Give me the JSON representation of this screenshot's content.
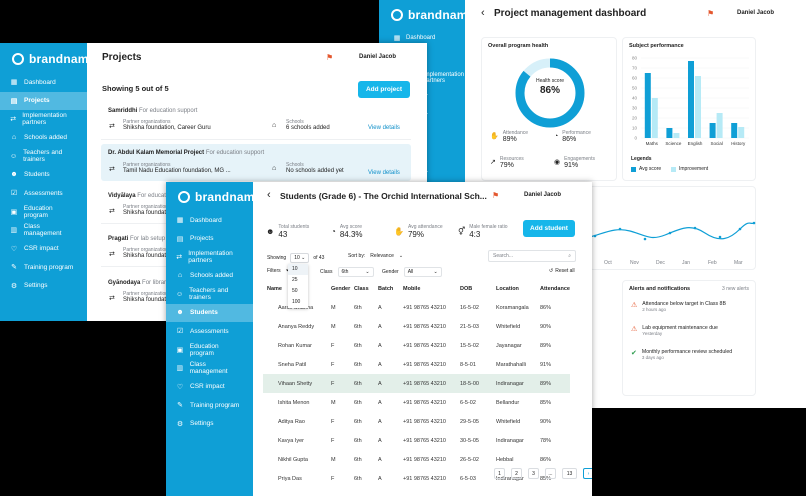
{
  "colors": {
    "primary": "#0f9fd6",
    "accent": "#16b6ea",
    "bar_dark": "#0f9fd6",
    "bar_light": "#b6eaf6"
  },
  "win3": {
    "brand": "brandname",
    "nav": [
      "Dashboard",
      "Projects",
      "Implementation partners",
      "Schools added",
      "Teachers and trainers",
      "Students",
      "Assessments",
      "Education program",
      "Class management",
      "CSR impact",
      "Training program",
      "Settings"
    ],
    "nav_partial": [
      "Dashboard",
      "Implementation partners",
      "Schools added",
      "Teachers and trainers",
      "Students",
      "Assessments",
      "Education program",
      "Class management",
      "CSR impact",
      "Training program",
      "Settings"
    ],
    "title": "Project management dashboard",
    "user": "Daniel Jacob",
    "health": {
      "title": "Overall program health",
      "center_label": "Health score",
      "score": "86%",
      "score_value": 86,
      "metrics": [
        {
          "label": "Attendance",
          "value": "89%",
          "icon": "hand-icon"
        },
        {
          "label": "Performance",
          "value": "86%",
          "icon": "gauge-icon"
        },
        {
          "label": "Resources",
          "value": "79%",
          "icon": "chart-icon"
        },
        {
          "label": "Engagements",
          "value": "91%",
          "icon": "eye-icon"
        }
      ]
    },
    "subject": {
      "title": "Subject performance",
      "yticks": [
        "80",
        "70",
        "60",
        "50",
        "40",
        "30",
        "20",
        "10",
        "0"
      ],
      "legend_title": "Legends",
      "legend": [
        "Avg score",
        "Improvement"
      ]
    },
    "months": [
      "Oct",
      "Nov",
      "Dec",
      "Jan",
      "Feb",
      "Mar"
    ],
    "alerts": {
      "title": "Alerts and notifications",
      "count": "3 new alerts",
      "items": [
        {
          "title": "Attendance below target in Class 8B",
          "time": "2 hours ago",
          "icon": "warning-icon"
        },
        {
          "title": "Lab equipment maintenance due",
          "time": "Yesterday",
          "icon": "warning-icon"
        },
        {
          "title": "Monthly performance review scheduled",
          "time": "3 days ago",
          "icon": "check-icon"
        }
      ]
    }
  },
  "chart_data": {
    "type": "bar",
    "title": "Subject performance",
    "categories": [
      "Maths",
      "Science",
      "English",
      "Social",
      "History"
    ],
    "ylim": [
      0,
      80
    ],
    "series": [
      {
        "name": "Avg score",
        "values": [
          65,
          10,
          77,
          15,
          15
        ]
      },
      {
        "name": "Improvement",
        "values": [
          40,
          5,
          62,
          25,
          11
        ]
      }
    ]
  },
  "win1": {
    "brand": "brandname",
    "nav": [
      "Dashboard",
      "Projects",
      "Implementation partners",
      "Schools added",
      "Teachers and trainers",
      "Students",
      "Assessments",
      "Education program",
      "Class management",
      "CSR impact",
      "Training program",
      "Settings"
    ],
    "title": "Projects",
    "user": "Daniel Jacob",
    "showing": "Showing 5 out of 5",
    "add_button": "Add project",
    "projects": [
      {
        "name": "Samriddhi",
        "purpose": "For education support",
        "partner_label": "Partner organizations",
        "partner": "Shiksha foundation, Career Guru",
        "schools_label": "Schools",
        "schools": "6 schools added",
        "link": "View details"
      },
      {
        "name": "Dr. Abdul Kalam Memorial Project",
        "purpose": "For education support",
        "partner_label": "Partner organizations",
        "partner": "Tamil Nadu Education foundation, MG ...",
        "schools_label": "Schools",
        "schools": "No schools added yet",
        "link": "View details"
      },
      {
        "name": "Vidyālaya",
        "purpose": "For education support",
        "partner_label": "Partner organizations",
        "partner": "Shiksha foundation",
        "schools_label": "",
        "schools": "",
        "link": ""
      },
      {
        "name": "Pragati",
        "purpose": "For lab setup",
        "partner_label": "Partner organizations",
        "partner": "Shiksha foundation",
        "schools_label": "",
        "schools": "",
        "link": ""
      },
      {
        "name": "Gyānodaya",
        "purpose": "For library",
        "partner_label": "Partner organizations",
        "partner": "Shiksha foundation",
        "schools_label": "",
        "schools": "",
        "link": ""
      }
    ]
  },
  "win2": {
    "brand": "brandname",
    "nav": [
      "Dashboard",
      "Projects",
      "Implementation partners",
      "Schools added",
      "Teachers and trainers",
      "Students",
      "Assessments",
      "Education program",
      "Class management",
      "CSR impact",
      "Training program",
      "Settings"
    ],
    "title": "Students (Grade 6) - The Orchid International Sch...",
    "user": "Daniel Jacob",
    "stats": [
      {
        "label": "Total students",
        "value": "43"
      },
      {
        "label": "Avg score",
        "value": "84.3%"
      },
      {
        "label": "Avg attendance",
        "value": "79%"
      },
      {
        "label": "Male female ratio",
        "value": "4:3"
      }
    ],
    "add_button": "Add student",
    "showing_label": "Showing",
    "showing_value": "10",
    "showing_suffix": "of 43",
    "showing_options": [
      "10",
      "25",
      "50",
      "100"
    ],
    "sort_label": "Sort by:",
    "sort_value": "Relevance",
    "search_placeholder": "Search...",
    "filters_label": "Filters",
    "class_label": "Class",
    "class_value": "6th",
    "gender_label": "Gender",
    "gender_value": "All",
    "reset": "Reset all",
    "columns": [
      "Name",
      "Gender",
      "Class",
      "Batch",
      "Mobile",
      "DOB",
      "Location",
      "Attendance"
    ],
    "rows": [
      [
        "Aarav Sharma",
        "M",
        "6th",
        "A",
        "+91 98765 43210",
        "16-5-02",
        "Koramangala",
        "86%"
      ],
      [
        "Ananya Reddy",
        "M",
        "6th",
        "A",
        "+91 98765 43210",
        "21-5-03",
        "Whitefield",
        "90%"
      ],
      [
        "Rohan Kumar",
        "F",
        "6th",
        "A",
        "+91 98765 43210",
        "15-5-02",
        "Jayanagar",
        "89%"
      ],
      [
        "Sneha Patil",
        "F",
        "6th",
        "A",
        "+91 98765 43210",
        "8-5-01",
        "Marathahalli",
        "91%"
      ],
      [
        "Vihaan Shetty",
        "F",
        "6th",
        "A",
        "+91 98765 43210",
        "18-5-00",
        "Indiranagar",
        "89%"
      ],
      [
        "Ishita Menon",
        "M",
        "6th",
        "A",
        "+91 98765 43210",
        "6-5-02",
        "Bellandur",
        "85%"
      ],
      [
        "Aditya Rao",
        "F",
        "6th",
        "A",
        "+91 98765 43210",
        "29-5-05",
        "Whitefield",
        "90%"
      ],
      [
        "Kavya Iyer",
        "F",
        "6th",
        "A",
        "+91 98765 43210",
        "30-5-05",
        "Indiranagar",
        "78%"
      ],
      [
        "Nikhil Gupta",
        "M",
        "6th",
        "A",
        "+91 98765 43210",
        "26-5-02",
        "Hebbal",
        "86%"
      ],
      [
        "Priya Das",
        "F",
        "6th",
        "A",
        "+91 98765 43210",
        "6-5-03",
        "Indiranagar",
        "85%"
      ]
    ],
    "pages": [
      "1",
      "2",
      "3",
      "...",
      "13"
    ]
  }
}
